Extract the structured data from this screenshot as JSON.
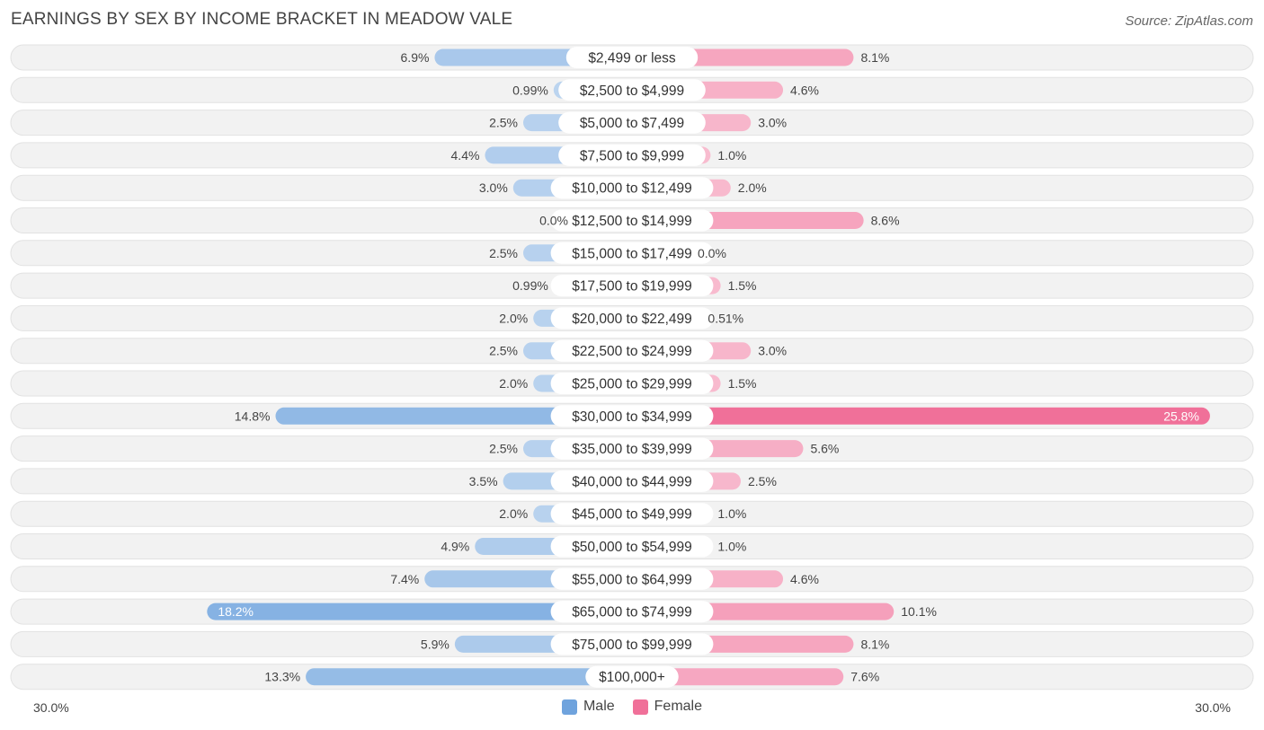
{
  "chart_data": {
    "type": "bar",
    "orientation": "horizontal-diverging",
    "title": "EARNINGS BY SEX BY INCOME BRACKET IN MEADOW VALE",
    "source": "Source: ZipAtlas.com",
    "categories": [
      "$2,499 or less",
      "$2,500 to $4,999",
      "$5,000 to $7,499",
      "$7,500 to $9,999",
      "$10,000 to $12,499",
      "$12,500 to $14,999",
      "$15,000 to $17,499",
      "$17,500 to $19,999",
      "$20,000 to $22,499",
      "$22,500 to $24,999",
      "$25,000 to $29,999",
      "$30,000 to $34,999",
      "$35,000 to $39,999",
      "$40,000 to $44,999",
      "$45,000 to $49,999",
      "$50,000 to $54,999",
      "$55,000 to $64,999",
      "$65,000 to $74,999",
      "$75,000 to $99,999",
      "$100,000+"
    ],
    "series": [
      {
        "name": "Male",
        "color": "#6fa3dd",
        "values": [
          6.9,
          0.99,
          2.5,
          4.4,
          3.0,
          0.0,
          2.5,
          0.99,
          2.0,
          2.5,
          2.0,
          14.8,
          2.5,
          3.5,
          2.0,
          4.9,
          7.4,
          18.2,
          5.9,
          13.3
        ],
        "labels": [
          "6.9%",
          "0.99%",
          "2.5%",
          "4.4%",
          "3.0%",
          "0.0%",
          "2.5%",
          "0.99%",
          "2.0%",
          "2.5%",
          "2.0%",
          "14.8%",
          "2.5%",
          "3.5%",
          "2.0%",
          "4.9%",
          "7.4%",
          "18.2%",
          "5.9%",
          "13.3%"
        ]
      },
      {
        "name": "Female",
        "color": "#f07099",
        "values": [
          8.1,
          4.6,
          3.0,
          1.0,
          2.0,
          8.6,
          0.0,
          1.5,
          0.51,
          3.0,
          1.5,
          25.8,
          5.6,
          2.5,
          1.0,
          1.0,
          4.6,
          10.1,
          8.1,
          7.6
        ],
        "labels": [
          "8.1%",
          "4.6%",
          "3.0%",
          "1.0%",
          "2.0%",
          "8.6%",
          "0.0%",
          "1.5%",
          "0.51%",
          "3.0%",
          "1.5%",
          "25.8%",
          "5.6%",
          "2.5%",
          "1.0%",
          "1.0%",
          "4.6%",
          "10.1%",
          "8.1%",
          "7.6%"
        ]
      }
    ],
    "xlim": [
      -30,
      30
    ],
    "axis_left_label": "30.0%",
    "axis_right_label": "30.0%",
    "legend_position": "bottom-center"
  }
}
